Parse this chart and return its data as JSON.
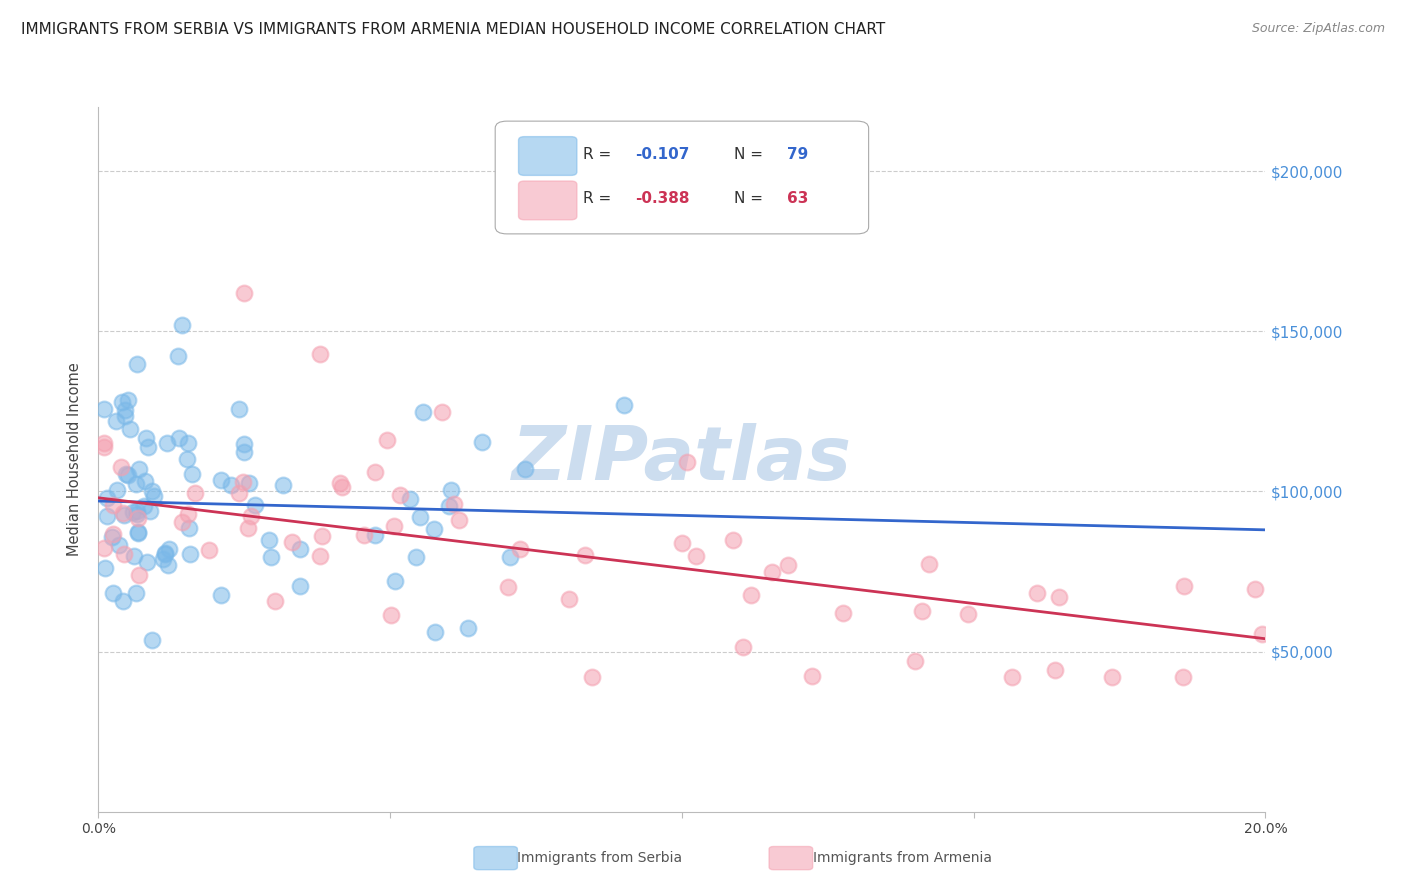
{
  "title": "IMMIGRANTS FROM SERBIA VS IMMIGRANTS FROM ARMENIA MEDIAN HOUSEHOLD INCOME CORRELATION CHART",
  "source": "Source: ZipAtlas.com",
  "ylabel": "Median Household Income",
  "xlim": [
    0.0,
    0.2
  ],
  "ylim": [
    0,
    220000
  ],
  "yticks": [
    50000,
    100000,
    150000,
    200000
  ],
  "ytick_labels": [
    "$50,000",
    "$100,000",
    "$150,000",
    "$200,000"
  ],
  "xticks": [
    0.0,
    0.05,
    0.1,
    0.15,
    0.2
  ],
  "xtick_labels": [
    "0.0%",
    "",
    "",
    "",
    "20.0%"
  ],
  "serbia_R": -0.107,
  "serbia_N": 79,
  "armenia_R": -0.388,
  "armenia_N": 63,
  "serbia_color": "#7ab8e8",
  "armenia_color": "#f4a0b0",
  "line_serbia_color": "#3366cc",
  "line_armenia_color": "#cc3355",
  "watermark_text": "ZIPatlas",
  "watermark_color": "#ccddef",
  "background_color": "#ffffff",
  "grid_color": "#cccccc",
  "right_tick_color": "#4a90d9",
  "title_fontsize": 11,
  "source_fontsize": 9,
  "legend_fontsize": 11,
  "serbia_line_y0": 97000,
  "serbia_line_y1": 88000,
  "armenia_line_y0": 98000,
  "armenia_line_y1": 54000
}
